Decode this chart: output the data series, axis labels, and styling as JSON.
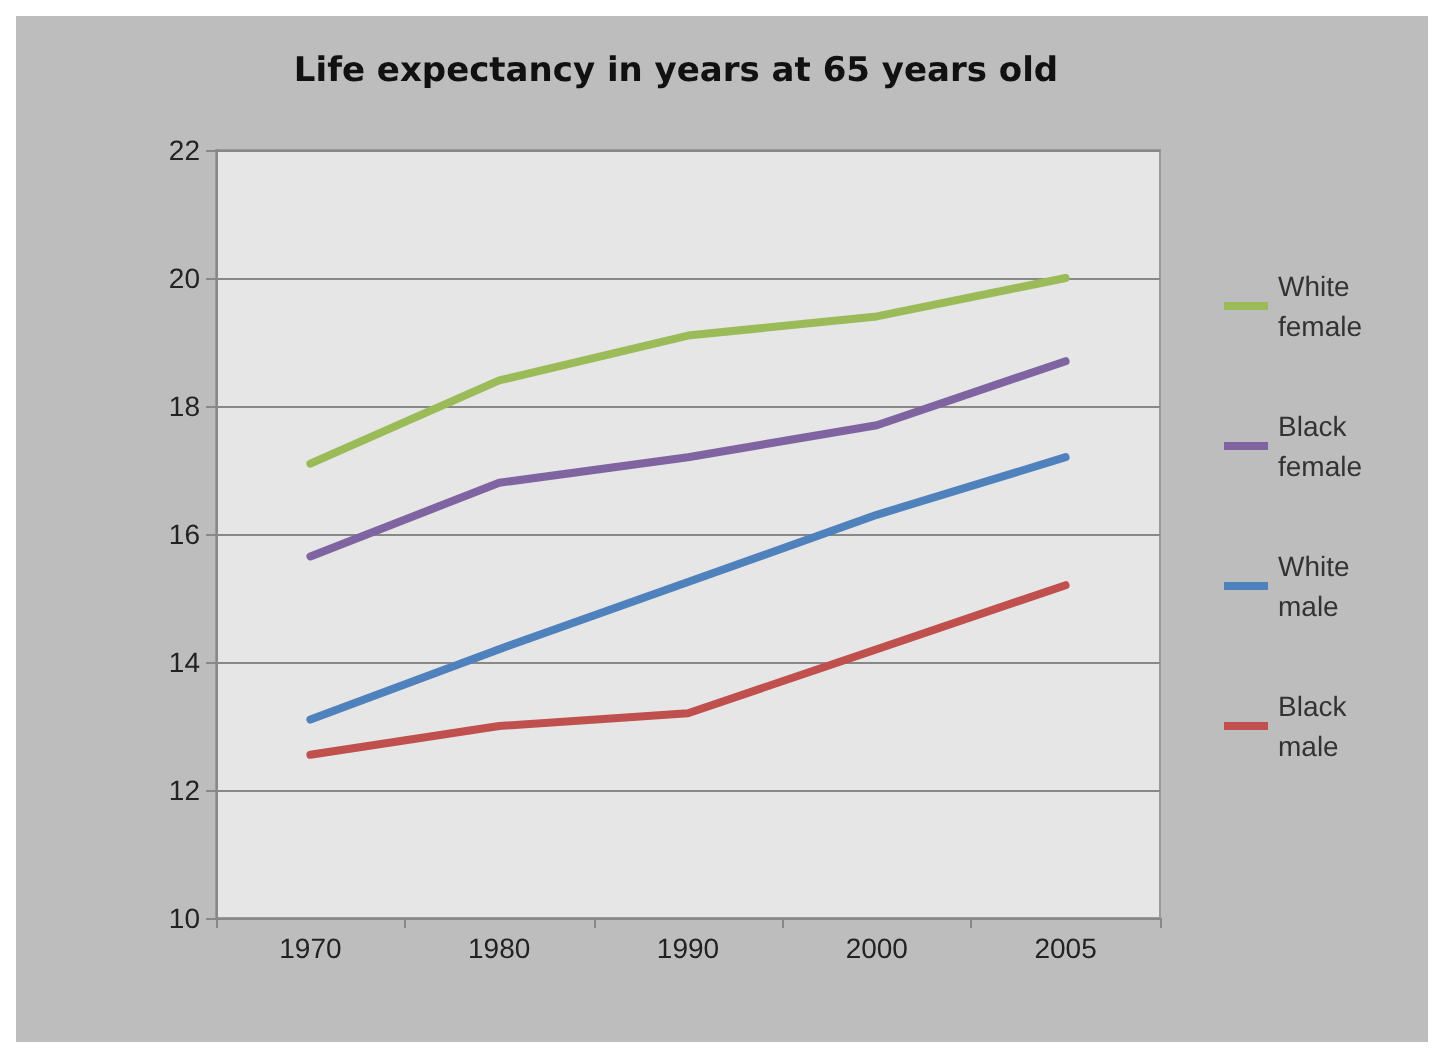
{
  "chart_data": {
    "type": "line",
    "title": "Life expectancy in years at 65 years old",
    "categories": [
      "1970",
      "1980",
      "1990",
      "2000",
      "2005"
    ],
    "series": [
      {
        "name": "White female",
        "color": "#9bbb59",
        "values": [
          17.1,
          18.4,
          19.1,
          19.4,
          20.0
        ]
      },
      {
        "name": "Black female",
        "color": "#8064a2",
        "values": [
          15.65,
          16.8,
          17.2,
          17.7,
          18.7
        ]
      },
      {
        "name": "White male",
        "color": "#4f81bd",
        "values": [
          13.1,
          14.2,
          15.25,
          16.3,
          17.2
        ]
      },
      {
        "name": "Black male",
        "color": "#c0504d",
        "values": [
          12.55,
          13.0,
          13.2,
          14.2,
          15.2
        ]
      }
    ],
    "ylim": [
      10,
      22
    ],
    "yticks": [
      10,
      12,
      14,
      16,
      18,
      20,
      22
    ],
    "grid": "y",
    "legend": "right",
    "marker": "none",
    "line_style": "solid"
  }
}
